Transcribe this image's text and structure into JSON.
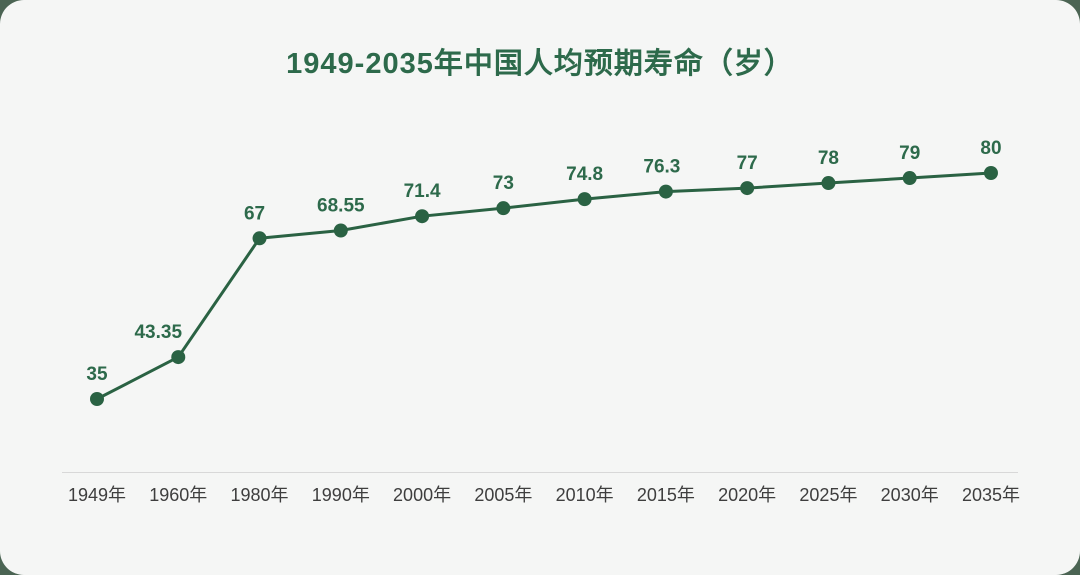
{
  "chart_data": {
    "type": "line",
    "title": "1949-2035年中国人均预期寿命（岁）",
    "categories": [
      "1949年",
      "1960年",
      "1980年",
      "1990年",
      "2000年",
      "2005年",
      "2010年",
      "2015年",
      "2020年",
      "2025年",
      "2030年",
      "2035年"
    ],
    "values": [
      35,
      43.35,
      67,
      68.55,
      71.4,
      73,
      74.8,
      76.3,
      77,
      78,
      79,
      80
    ],
    "value_labels": [
      "35",
      "43.35",
      "67",
      "68.55",
      "71.4",
      "73",
      "74.8",
      "76.3",
      "77",
      "78",
      "79",
      "80"
    ],
    "xlabel": "",
    "ylabel": "",
    "ylim": [
      35,
      80
    ],
    "grid": false,
    "legend": false,
    "y_axis_visible": false,
    "x_axis_visible": true,
    "marker": "circle"
  },
  "colors": {
    "page_background": "#4b6453",
    "card_background": "#f5f6f5",
    "line": "#2a6243",
    "marker": "#2a6243",
    "value_label": "#2d6a4b",
    "title": "#2d6a4b",
    "axis_line": "#d8d8d8",
    "tick_label": "#3e3e3e"
  }
}
